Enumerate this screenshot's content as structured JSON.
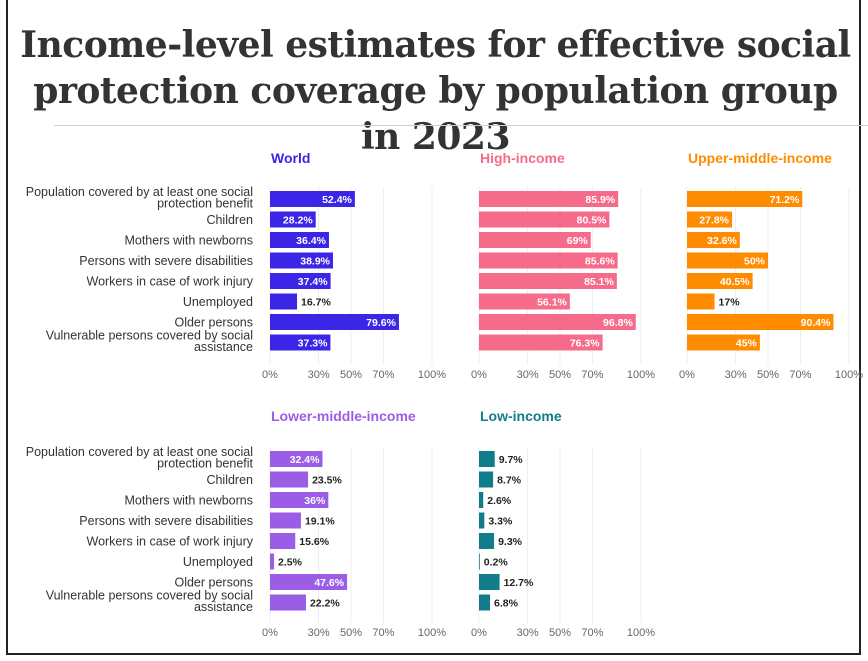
{
  "title": "Income-level estimates for effective social protection coverage by population group in 2023",
  "title_lines": [
    "Income-level estimates for effective social",
    "protection coverage by population group in 2023"
  ],
  "chart_data": {
    "type": "bar",
    "orientation": "horizontal",
    "categories": [
      "Population covered by at least one social protection benefit",
      "Children",
      "Mothers with newborns",
      "Persons with severe disabilities",
      "Workers in case of work injury",
      "Unemployed",
      "Older persons",
      "Vulnerable persons covered by social assistance"
    ],
    "xlim": [
      0,
      100
    ],
    "xticks": [
      "0%",
      "30%",
      "50%",
      "70%",
      "100%"
    ],
    "xtick_values": [
      0,
      30,
      50,
      70,
      100
    ],
    "grid": true,
    "panels": [
      {
        "name": "World",
        "color": "#3b25e6",
        "values": [
          52.4,
          28.2,
          36.4,
          38.9,
          37.4,
          16.7,
          79.6,
          37.3
        ],
        "labels": [
          "52.4%",
          "28.2%",
          "36.4%",
          "38.9%",
          "37.4%",
          "16.7%",
          "79.6%",
          "37.3%"
        ]
      },
      {
        "name": "High-income",
        "color": "#f76b8a",
        "values": [
          85.9,
          80.5,
          69,
          85.6,
          85.1,
          56.1,
          96.8,
          76.3
        ],
        "labels": [
          "85.9%",
          "80.5%",
          "69%",
          "85.6%",
          "85.1%",
          "56.1%",
          "96.8%",
          "76.3%"
        ]
      },
      {
        "name": "Upper-middle-income",
        "color": "#ff8c00",
        "values": [
          71.2,
          27.8,
          32.6,
          50,
          40.5,
          17,
          90.4,
          45
        ],
        "labels": [
          "71.2%",
          "27.8%",
          "32.6%",
          "50%",
          "40.5%",
          "17%",
          "90.4%",
          "45%"
        ]
      },
      {
        "name": "Lower-middle-income",
        "color": "#9b5de5",
        "values": [
          32.4,
          23.5,
          36,
          19.1,
          15.6,
          2.5,
          47.6,
          22.2
        ],
        "labels": [
          "32.4%",
          "23.5%",
          "36%",
          "19.1%",
          "15.6%",
          "2.5%",
          "47.6%",
          "22.2%"
        ]
      },
      {
        "name": "Low-income",
        "color": "#127d8a",
        "values": [
          9.7,
          8.7,
          2.6,
          3.3,
          9.3,
          0.2,
          12.7,
          6.8
        ],
        "labels": [
          "9.7%",
          "8.7%",
          "2.6%",
          "3.3%",
          "9.3%",
          "0.2%",
          "12.7%",
          "6.8%"
        ]
      }
    ]
  }
}
